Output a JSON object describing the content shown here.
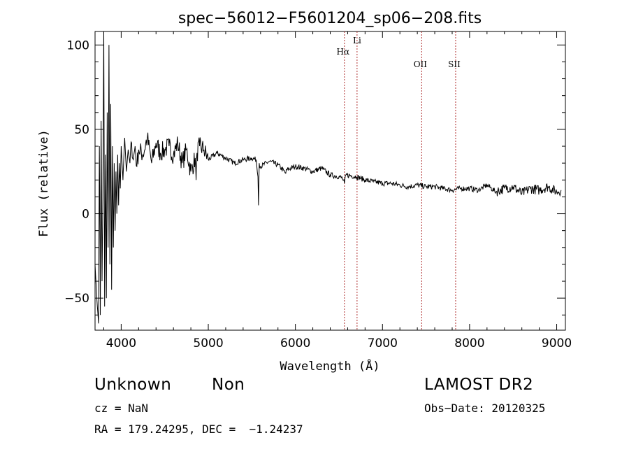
{
  "chart_data": {
    "type": "line",
    "title": "spec−56012−F5601204_sp06−208.fits",
    "xlabel": "Wavelength (Å)",
    "ylabel": "Flux (relative)",
    "xlim": [
      3700,
      9100
    ],
    "ylim": [
      -69,
      108
    ],
    "xticks": [
      4000,
      5000,
      6000,
      7000,
      8000,
      9000
    ],
    "xtick_labels": [
      "4000",
      "5000",
      "6000",
      "7000",
      "8000",
      "9000"
    ],
    "yticks": [
      -50,
      0,
      50,
      100
    ],
    "ytick_labels": [
      "−50",
      "0",
      "50",
      "100"
    ],
    "grid": false,
    "lines": [
      {
        "label": "Hα",
        "x": 6563
      },
      {
        "label": "Li",
        "x": 6708
      },
      {
        "label": "OII",
        "x": 7450
      },
      {
        "label": "SII",
        "x": 7840
      }
    ],
    "series": [
      {
        "color": "#000000",
        "x": [
          3700,
          3720,
          3740,
          3750,
          3760,
          3770,
          3780,
          3790,
          3800,
          3810,
          3820,
          3830,
          3840,
          3850,
          3860,
          3870,
          3880,
          3890,
          3900,
          3910,
          3920,
          3930,
          3940,
          3950,
          3960,
          3970,
          3980,
          3990,
          4000,
          4020,
          4040,
          4060,
          4080,
          4100,
          4120,
          4140,
          4160,
          4180,
          4200,
          4250,
          4300,
          4350,
          4400,
          4450,
          4500,
          4550,
          4600,
          4650,
          4700,
          4750,
          4800,
          4850,
          4860,
          4870,
          4900,
          4950,
          5000,
          5100,
          5200,
          5300,
          5400,
          5500,
          5550,
          5570,
          5577,
          5585,
          5600,
          5700,
          5800,
          5890,
          5900,
          6000,
          6100,
          6200,
          6300,
          6400,
          6500,
          6540,
          6563,
          6580,
          6700,
          6800,
          6900,
          7000,
          7100,
          7200,
          7300,
          7400,
          7500,
          7600,
          7700,
          7800,
          7900,
          8000,
          8100,
          8200,
          8300,
          8400,
          8500,
          8600,
          8700,
          8800,
          8900,
          9000,
          9050
        ],
        "y": [
          -30,
          -50,
          -65,
          40,
          -60,
          55,
          -40,
          10,
          108,
          -55,
          35,
          -50,
          60,
          -20,
          100,
          -30,
          65,
          -45,
          40,
          -20,
          30,
          -10,
          25,
          0,
          35,
          5,
          30,
          15,
          40,
          20,
          45,
          25,
          38,
          30,
          42,
          32,
          40,
          28,
          38,
          35,
          45,
          30,
          42,
          36,
          38,
          40,
          35,
          42,
          30,
          38,
          25,
          33,
          20,
          36,
          40,
          38,
          32,
          36,
          33,
          30,
          32,
          33,
          32,
          22,
          5,
          30,
          28,
          31,
          29,
          24,
          26,
          28,
          27,
          25,
          27,
          23,
          22,
          21,
          18,
          23,
          22,
          20,
          19,
          18,
          18,
          17,
          16,
          17,
          16,
          16,
          15,
          14,
          15,
          15,
          14,
          17,
          13,
          15,
          16,
          12,
          15,
          14,
          16,
          13,
          14
        ]
      }
    ]
  },
  "info": {
    "class": "Unknown",
    "subclass": "Non",
    "survey": "LAMOST DR2",
    "cz": "cz = NaN",
    "obs_date": "Obs−Date: 20120325",
    "radec": "RA = 179.24295, DEC =  −1.24237"
  }
}
